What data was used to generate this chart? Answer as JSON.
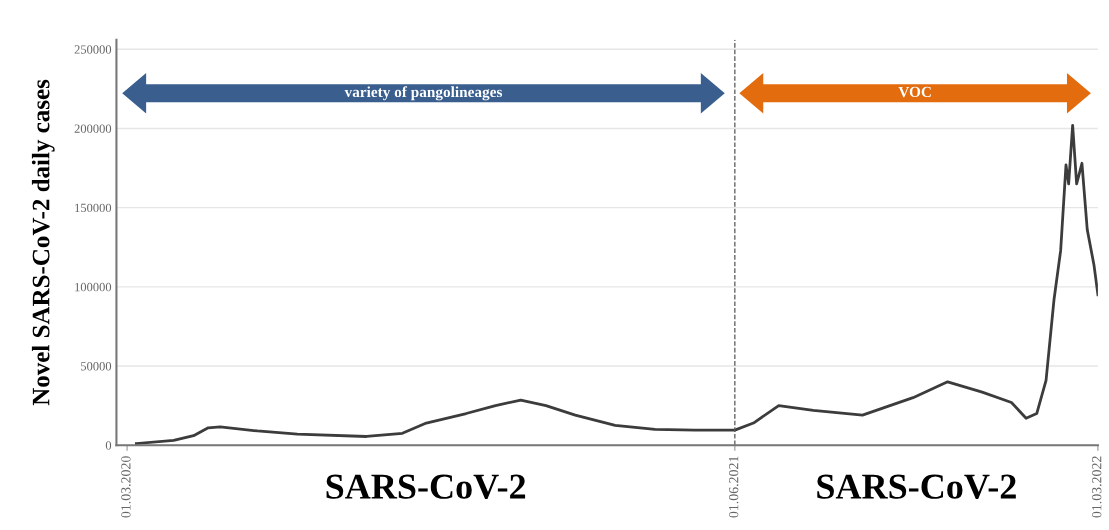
{
  "chart_data": {
    "type": "line",
    "ylabel": "Novel SARS-CoV-2 daily cases",
    "x": [
      "2020-03-08",
      "2020-04-05",
      "2020-04-20",
      "2020-05-01",
      "2020-05-10",
      "2020-06-07",
      "2020-07-07",
      "2020-08-28",
      "2020-09-24",
      "2020-10-12",
      "2020-11-11",
      "2020-12-03",
      "2020-12-22",
      "2021-01-10",
      "2021-02-01",
      "2021-03-03",
      "2021-04-02",
      "2021-05-02",
      "2021-06-01",
      "2021-06-15",
      "2021-07-04",
      "2021-07-30",
      "2021-09-05",
      "2021-10-13",
      "2021-11-08",
      "2021-12-04",
      "2021-12-26",
      "2022-01-06",
      "2022-01-14",
      "2022-01-21",
      "2022-01-27",
      "2022-02-01",
      "2022-02-05",
      "2022-02-07",
      "2022-02-10",
      "2022-02-13",
      "2022-02-17",
      "2022-02-21",
      "2022-02-26",
      "2022-03-01"
    ],
    "series": [
      {
        "color": "#3c3c3c",
        "values": [
          1000,
          3000,
          6000,
          11000,
          11500,
          9000,
          7000,
          5500,
          7500,
          14000,
          20000,
          25000,
          28500,
          25000,
          19000,
          12500,
          10000,
          9500,
          9500,
          14000,
          25000,
          22000,
          19000,
          30000,
          40000,
          33500,
          27000,
          17000,
          20000,
          41000,
          92000,
          123000,
          177000,
          165000,
          202000,
          165000,
          178000,
          136000,
          114000,
          95000
        ]
      }
    ],
    "xlim": [
      "2020-02-22",
      "2022-03-01"
    ],
    "xticks": [
      {
        "value": "2020-03-01",
        "label": "01.03.2020"
      },
      {
        "value": "2021-06-01",
        "label": "01.06.2021"
      },
      {
        "value": "2022-03-01",
        "label": "01.03.2022"
      }
    ],
    "ylim": [
      0,
      256000
    ],
    "yticks": [
      0,
      50000,
      100000,
      150000,
      200000,
      250000
    ],
    "grid": "y",
    "line_style": "solid",
    "marker": "none",
    "ref_lines": [
      {
        "axis": "x",
        "value": "2021-06-01",
        "color": "#555555",
        "line_style": "dashed"
      }
    ],
    "annotations": [
      "variety of pangolineages",
      "VOC",
      "SARS-CoV-2",
      "SARS-CoV-2"
    ]
  }
}
